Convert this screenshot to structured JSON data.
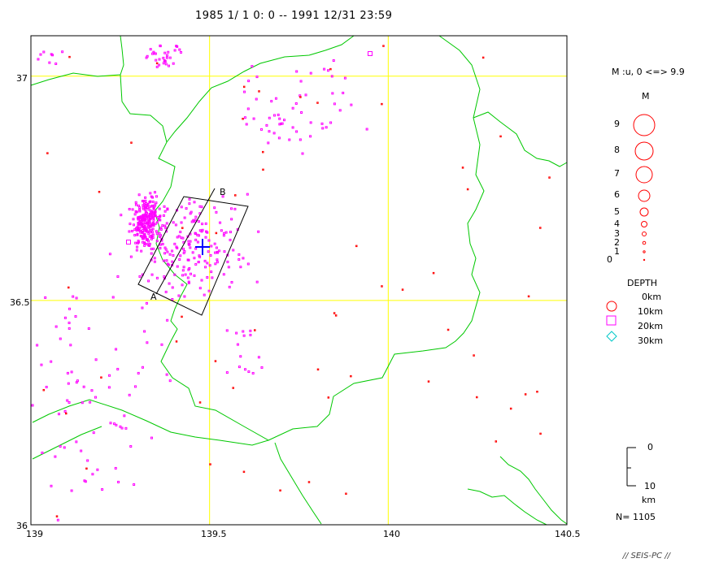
{
  "title": "1985  1/ 1  0: 0 -- 1991 12/31 23:59",
  "map": {
    "lon_range": [
      139,
      140.5
    ],
    "lat_range": [
      36,
      37.09
    ],
    "x_ticks": [
      "139",
      "139.5",
      "140",
      "140.5"
    ],
    "y_ticks": [
      "37",
      "36.5",
      "36"
    ],
    "grid_lons": [
      139.5,
      140
    ],
    "grid_lats": [
      37,
      36.5
    ],
    "grid_color": "#ffff00",
    "coast_color": "#00c800",
    "epicenter_color": "#ff00ff",
    "cross_color": "#0000ff",
    "section_labels": {
      "a": "A",
      "b": "B"
    }
  },
  "legend": {
    "magnitude_range": "M :u, 0 <=> 9.9",
    "m_header": "M",
    "magnitudes": [
      "9",
      "8",
      "7",
      "6",
      "5",
      "4",
      "3",
      "2",
      "1",
      "0"
    ],
    "depth_header": "DEPTH",
    "depths": [
      "0km",
      "10km",
      "20km",
      "30km"
    ],
    "scale_top": "0",
    "scale_bottom": "10",
    "scale_unit": "km",
    "count": "N= 1105",
    "circle_color": "#ff0000"
  },
  "footer": "// SEIS-PC //"
}
